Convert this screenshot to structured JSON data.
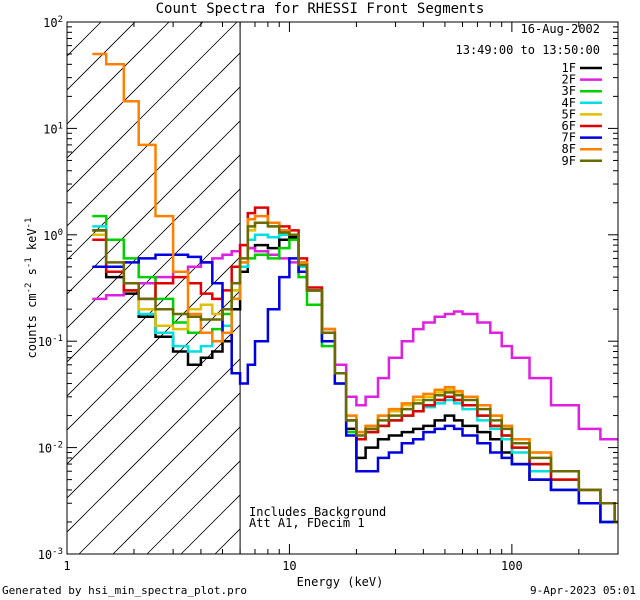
{
  "header": {
    "title": "Count Spectra for RHESSI Front Segments"
  },
  "footer": {
    "generated_by": "Generated by hsi_min_spectra_plot.pro",
    "timestamp": "9-Apr-2023 05:01"
  },
  "annotations": {
    "date": "16-Aug-2002",
    "time_range": "13:49:00 to 13:50:00",
    "background_note": "Includes Background",
    "attenuator_note": "Att A1, FDecim 1"
  },
  "chart_data": {
    "type": "line",
    "title": "Count Spectra for RHESSI Front Segments",
    "xlabel": "Energy (keV)",
    "ylabel": "counts cm^-2 s^-1 keV^-1",
    "ylabel_parts": {
      "base": "counts cm",
      "exp1": "-2",
      "mid1": " s",
      "exp2": "-1",
      "mid2": " keV",
      "exp3": "-1"
    },
    "xscale": "log",
    "yscale": "log",
    "xlim": [
      1,
      300
    ],
    "ylim": [
      0.001,
      100
    ],
    "x_ticks": [
      "1",
      "10",
      "100"
    ],
    "y_ticks": [
      {
        "base": "10",
        "exp": "-3",
        "value": 0.001
      },
      {
        "base": "10",
        "exp": "-2",
        "value": 0.01
      },
      {
        "base": "10",
        "exp": "-1",
        "value": 0.1
      },
      {
        "base": "10",
        "exp": "0",
        "value": 1
      },
      {
        "base": "10",
        "exp": "1",
        "value": 10
      },
      {
        "base": "10",
        "exp": "2",
        "value": 100
      }
    ],
    "hatched_region_x": [
      1,
      6
    ],
    "threshold_line_x": 6,
    "legend_position": "top-right",
    "series": [
      {
        "name": "1F",
        "color": "#000000",
        "x": [
          1.3,
          1.5,
          1.8,
          2.1,
          2.5,
          3.0,
          3.5,
          4.0,
          4.5,
          5.0,
          5.5,
          6.0,
          6.5,
          7.0,
          8.0,
          9.0,
          10.0,
          11.0,
          12.0,
          14.0,
          16.0,
          18.0,
          20.0,
          22.0,
          25.0,
          28.0,
          32.0,
          36.0,
          40.0,
          45.0,
          50.0,
          55.0,
          60.0,
          70.0,
          80.0,
          90.0,
          100.0,
          120.0,
          150.0,
          200.0,
          250.0,
          290.0
        ],
        "y": [
          1.1,
          0.4,
          0.28,
          0.17,
          0.11,
          0.08,
          0.06,
          0.07,
          0.08,
          0.1,
          0.2,
          0.45,
          0.75,
          0.8,
          0.75,
          0.9,
          0.95,
          0.5,
          0.3,
          0.12,
          0.05,
          0.015,
          0.008,
          0.01,
          0.012,
          0.013,
          0.014,
          0.015,
          0.016,
          0.018,
          0.02,
          0.018,
          0.016,
          0.014,
          0.012,
          0.009,
          0.007,
          0.005,
          0.004,
          0.003,
          0.002,
          0.002
        ]
      },
      {
        "name": "2F",
        "color": "#e020e0",
        "x": [
          1.3,
          1.5,
          1.8,
          2.1,
          2.5,
          3.0,
          3.5,
          4.0,
          4.5,
          5.0,
          5.5,
          6.0,
          6.5,
          7.0,
          8.0,
          9.0,
          10.0,
          11.0,
          12.0,
          14.0,
          16.0,
          18.0,
          20.0,
          22.0,
          25.0,
          28.0,
          32.0,
          36.0,
          40.0,
          45.0,
          50.0,
          55.0,
          60.0,
          70.0,
          80.0,
          90.0,
          100.0,
          120.0,
          150.0,
          200.0,
          250.0,
          290.0
        ],
        "y": [
          0.25,
          0.27,
          0.3,
          0.35,
          0.4,
          0.45,
          0.5,
          0.55,
          0.6,
          0.65,
          0.7,
          0.8,
          0.75,
          0.7,
          0.65,
          0.6,
          0.55,
          0.45,
          0.3,
          0.12,
          0.06,
          0.03,
          0.025,
          0.03,
          0.045,
          0.07,
          0.1,
          0.13,
          0.15,
          0.17,
          0.18,
          0.19,
          0.18,
          0.15,
          0.12,
          0.09,
          0.07,
          0.045,
          0.025,
          0.015,
          0.012,
          0.012
        ]
      },
      {
        "name": "3F",
        "color": "#00d000",
        "x": [
          1.3,
          1.5,
          1.8,
          2.1,
          2.5,
          3.0,
          3.5,
          4.0,
          4.5,
          5.0,
          5.5,
          6.0,
          6.5,
          7.0,
          8.0,
          9.0,
          10.0,
          11.0,
          12.0,
          14.0,
          16.0,
          18.0,
          20.0,
          22.0,
          25.0,
          28.0,
          32.0,
          36.0,
          40.0,
          45.0,
          50.0,
          55.0,
          60.0,
          70.0,
          80.0,
          90.0,
          100.0,
          120.0,
          150.0,
          200.0,
          250.0,
          290.0
        ],
        "y": [
          1.5,
          0.9,
          0.6,
          0.4,
          0.25,
          0.15,
          0.12,
          0.12,
          0.13,
          0.18,
          0.3,
          0.5,
          0.6,
          0.65,
          0.6,
          0.75,
          0.9,
          0.4,
          0.22,
          0.09,
          0.04,
          0.014,
          0.012,
          0.014,
          0.016,
          0.018,
          0.02,
          0.022,
          0.025,
          0.028,
          0.03,
          0.028,
          0.025,
          0.02,
          0.016,
          0.013,
          0.01,
          0.007,
          0.005,
          0.004,
          0.003,
          0.002
        ]
      },
      {
        "name": "4F",
        "color": "#00e0e0",
        "x": [
          1.3,
          1.5,
          1.8,
          2.1,
          2.5,
          3.0,
          3.5,
          4.0,
          4.5,
          5.0,
          5.5,
          6.0,
          6.5,
          7.0,
          8.0,
          9.0,
          10.0,
          11.0,
          12.0,
          14.0,
          16.0,
          18.0,
          20.0,
          22.0,
          25.0,
          28.0,
          32.0,
          36.0,
          40.0,
          45.0,
          50.0,
          55.0,
          60.0,
          70.0,
          80.0,
          90.0,
          100.0,
          120.0,
          150.0,
          200.0,
          250.0,
          290.0
        ],
        "y": [
          1.2,
          0.5,
          0.3,
          0.18,
          0.12,
          0.09,
          0.08,
          0.09,
          0.1,
          0.14,
          0.25,
          0.5,
          0.9,
          1.0,
          0.95,
          1.0,
          1.0,
          0.5,
          0.3,
          0.12,
          0.05,
          0.018,
          0.012,
          0.014,
          0.016,
          0.018,
          0.02,
          0.022,
          0.024,
          0.026,
          0.028,
          0.026,
          0.023,
          0.018,
          0.015,
          0.012,
          0.009,
          0.006,
          0.004,
          0.003,
          0.002,
          0.002
        ]
      },
      {
        "name": "5F",
        "color": "#e0c000",
        "x": [
          1.3,
          1.5,
          1.8,
          2.1,
          2.5,
          3.0,
          3.5,
          4.0,
          4.5,
          5.0,
          5.5,
          6.0,
          6.5,
          7.0,
          8.0,
          9.0,
          10.0,
          11.0,
          12.0,
          14.0,
          16.0,
          18.0,
          20.0,
          22.0,
          25.0,
          28.0,
          32.0,
          36.0,
          40.0,
          45.0,
          50.0,
          55.0,
          60.0,
          70.0,
          80.0,
          90.0,
          100.0,
          120.0,
          150.0,
          200.0,
          250.0,
          290.0
        ],
        "y": [
          1.0,
          0.45,
          0.3,
          0.2,
          0.14,
          0.13,
          0.2,
          0.22,
          0.18,
          0.2,
          0.3,
          0.55,
          1.1,
          1.3,
          1.2,
          1.1,
          1.0,
          0.55,
          0.3,
          0.13,
          0.05,
          0.02,
          0.014,
          0.016,
          0.02,
          0.022,
          0.025,
          0.028,
          0.03,
          0.033,
          0.035,
          0.033,
          0.03,
          0.025,
          0.02,
          0.016,
          0.012,
          0.009,
          0.006,
          0.004,
          0.003,
          0.002
        ]
      },
      {
        "name": "6F",
        "color": "#e00000",
        "x": [
          1.3,
          1.5,
          1.8,
          2.1,
          2.5,
          3.0,
          3.5,
          4.0,
          4.5,
          5.0,
          5.5,
          6.0,
          6.5,
          7.0,
          8.0,
          9.0,
          10.0,
          11.0,
          12.0,
          14.0,
          16.0,
          18.0,
          20.0,
          22.0,
          25.0,
          28.0,
          32.0,
          36.0,
          40.0,
          45.0,
          50.0,
          55.0,
          60.0,
          70.0,
          80.0,
          90.0,
          100.0,
          120.0,
          150.0,
          200.0,
          250.0,
          290.0
        ],
        "y": [
          0.9,
          0.45,
          0.3,
          0.25,
          0.35,
          0.4,
          0.35,
          0.28,
          0.25,
          0.3,
          0.5,
          0.8,
          1.6,
          1.8,
          1.3,
          1.2,
          1.1,
          0.6,
          0.32,
          0.13,
          0.05,
          0.018,
          0.012,
          0.014,
          0.016,
          0.018,
          0.02,
          0.022,
          0.025,
          0.028,
          0.03,
          0.028,
          0.025,
          0.02,
          0.016,
          0.013,
          0.01,
          0.007,
          0.005,
          0.004,
          0.003,
          0.002
        ]
      },
      {
        "name": "7F",
        "color": "#0000e0",
        "x": [
          1.3,
          1.5,
          1.8,
          2.1,
          2.5,
          3.0,
          3.5,
          4.0,
          4.5,
          5.0,
          5.5,
          6.0,
          6.5,
          7.0,
          8.0,
          9.0,
          10.0,
          11.0,
          12.0,
          14.0,
          16.0,
          18.0,
          20.0,
          22.0,
          25.0,
          28.0,
          32.0,
          36.0,
          40.0,
          45.0,
          50.0,
          55.0,
          60.0,
          70.0,
          80.0,
          90.0,
          100.0,
          120.0,
          150.0,
          200.0,
          250.0,
          290.0
        ],
        "y": [
          0.5,
          0.5,
          0.55,
          0.6,
          0.65,
          0.65,
          0.62,
          0.55,
          0.35,
          0.12,
          0.05,
          0.04,
          0.06,
          0.1,
          0.2,
          0.4,
          0.6,
          0.45,
          0.3,
          0.1,
          0.04,
          0.013,
          0.006,
          0.006,
          0.008,
          0.009,
          0.011,
          0.012,
          0.014,
          0.015,
          0.016,
          0.015,
          0.013,
          0.011,
          0.009,
          0.008,
          0.007,
          0.005,
          0.004,
          0.003,
          0.002,
          0.002
        ]
      },
      {
        "name": "8F",
        "color": "#ff8000",
        "x": [
          1.3,
          1.5,
          1.8,
          2.1,
          2.5,
          3.0,
          3.5,
          4.0,
          4.5,
          5.0,
          5.5,
          6.0,
          6.5,
          7.0,
          8.0,
          9.0,
          10.0,
          11.0,
          12.0,
          14.0,
          16.0,
          18.0,
          20.0,
          22.0,
          25.0,
          28.0,
          32.0,
          36.0,
          40.0,
          45.0,
          50.0,
          55.0,
          60.0,
          70.0,
          80.0,
          90.0,
          100.0,
          120.0,
          150.0,
          200.0,
          250.0,
          290.0
        ],
        "y": [
          50,
          40,
          18,
          7,
          1.5,
          0.45,
          0.18,
          0.12,
          0.1,
          0.12,
          0.25,
          0.55,
          1.4,
          1.5,
          1.3,
          1.1,
          1.0,
          0.55,
          0.3,
          0.13,
          0.05,
          0.02,
          0.014,
          0.016,
          0.02,
          0.023,
          0.026,
          0.03,
          0.032,
          0.035,
          0.037,
          0.034,
          0.03,
          0.025,
          0.02,
          0.016,
          0.012,
          0.009,
          0.006,
          0.004,
          0.003,
          0.002
        ]
      },
      {
        "name": "9F",
        "color": "#6a6a00",
        "x": [
          1.3,
          1.5,
          1.8,
          2.1,
          2.5,
          3.0,
          3.5,
          4.0,
          4.5,
          5.0,
          5.5,
          6.0,
          6.5,
          7.0,
          8.0,
          9.0,
          10.0,
          11.0,
          12.0,
          14.0,
          16.0,
          18.0,
          20.0,
          22.0,
          25.0,
          28.0,
          32.0,
          36.0,
          40.0,
          45.0,
          50.0,
          55.0,
          60.0,
          70.0,
          80.0,
          90.0,
          100.0,
          120.0,
          150.0,
          200.0,
          250.0,
          290.0
        ],
        "y": [
          1.1,
          0.55,
          0.35,
          0.25,
          0.2,
          0.18,
          0.17,
          0.16,
          0.16,
          0.2,
          0.35,
          0.6,
          1.2,
          1.3,
          1.2,
          1.05,
          1.0,
          0.52,
          0.3,
          0.12,
          0.05,
          0.018,
          0.013,
          0.015,
          0.018,
          0.02,
          0.023,
          0.026,
          0.028,
          0.031,
          0.033,
          0.031,
          0.028,
          0.023,
          0.018,
          0.015,
          0.011,
          0.008,
          0.006,
          0.004,
          0.003,
          0.002
        ]
      }
    ]
  }
}
